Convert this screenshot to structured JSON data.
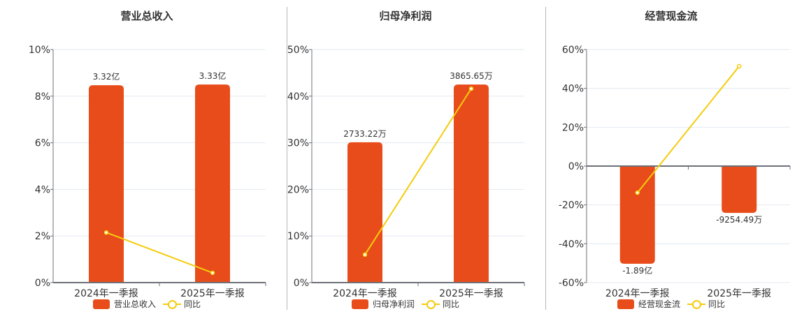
{
  "colors": {
    "bar": "#e84c1b",
    "line": "#f5cc0c",
    "grid": "#e3e8ef",
    "axis": "#6e7079"
  },
  "legend": {
    "line_label": "同比"
  },
  "charts": [
    {
      "title": "营业总收入",
      "bar_legend": "营业总收入",
      "yticks": [
        "10%",
        "8%",
        "6%",
        "4%",
        "2%",
        "0%"
      ],
      "categories": [
        "2024年一季报",
        "2025年一季报"
      ],
      "bar_labels": [
        "3.32亿",
        "3.33亿"
      ]
    },
    {
      "title": "归母净利润",
      "bar_legend": "归母净利润",
      "yticks": [
        "50%",
        "40%",
        "30%",
        "20%",
        "10%",
        "0%"
      ],
      "categories": [
        "2024年一季报",
        "2025年一季报"
      ],
      "bar_labels": [
        "2733.22万",
        "3865.65万"
      ]
    },
    {
      "title": "经营现金流",
      "bar_legend": "经营现金流",
      "yticks": [
        "60%",
        "40%",
        "20%",
        "0%",
        "-20%",
        "-40%",
        "-60%"
      ],
      "categories": [
        "2024年一季报",
        "2025年一季报"
      ],
      "bar_labels": [
        "-1.89亿",
        "-9254.49万"
      ]
    }
  ],
  "chart_data": [
    {
      "type": "bar",
      "title": "营业总收入",
      "categories": [
        "2024年一季报",
        "2025年一季报"
      ],
      "series": [
        {
          "name": "营业总收入",
          "type": "bar",
          "values": [
            3.32,
            3.33
          ],
          "unit": "亿",
          "labels": [
            "3.32亿",
            "3.33亿"
          ],
          "axis_position_pct": [
            8.47,
            8.5
          ]
        },
        {
          "name": "同比",
          "type": "line",
          "values": [
            2.15,
            0.42
          ],
          "unit": "%"
        }
      ],
      "ylim": [
        0,
        10
      ],
      "yticks": [
        0,
        2,
        4,
        6,
        8,
        10
      ],
      "ylabel": "",
      "xlabel": "",
      "grid": true,
      "legend_position": "bottom"
    },
    {
      "type": "bar",
      "title": "归母净利润",
      "categories": [
        "2024年一季报",
        "2025年一季报"
      ],
      "series": [
        {
          "name": "归母净利润",
          "type": "bar",
          "values": [
            2733.22,
            3865.65
          ],
          "unit": "万",
          "labels": [
            "2733.22万",
            "3865.65万"
          ],
          "axis_position_pct": [
            30.1,
            42.5
          ]
        },
        {
          "name": "同比",
          "type": "line",
          "values": [
            6.0,
            41.6
          ],
          "unit": "%"
        }
      ],
      "ylim": [
        0,
        50
      ],
      "yticks": [
        0,
        10,
        20,
        30,
        40,
        50
      ],
      "ylabel": "",
      "xlabel": "",
      "grid": true,
      "legend_position": "bottom"
    },
    {
      "type": "bar",
      "title": "经营现金流",
      "categories": [
        "2024年一季报",
        "2025年一季报"
      ],
      "series": [
        {
          "name": "经营现金流",
          "type": "bar",
          "values": [
            -18900,
            -9254.49
          ],
          "unit": "万",
          "labels": [
            "-1.89亿",
            "-9254.49万"
          ],
          "axis_position_pct": [
            -50.3,
            -24.1
          ]
        },
        {
          "name": "同比",
          "type": "line",
          "values": [
            -13.7,
            51.4
          ],
          "unit": "%"
        }
      ],
      "ylim": [
        -60,
        60
      ],
      "yticks": [
        -60,
        -40,
        -20,
        0,
        20,
        40,
        60
      ],
      "ylabel": "",
      "xlabel": "",
      "grid": true,
      "legend_position": "bottom"
    }
  ]
}
